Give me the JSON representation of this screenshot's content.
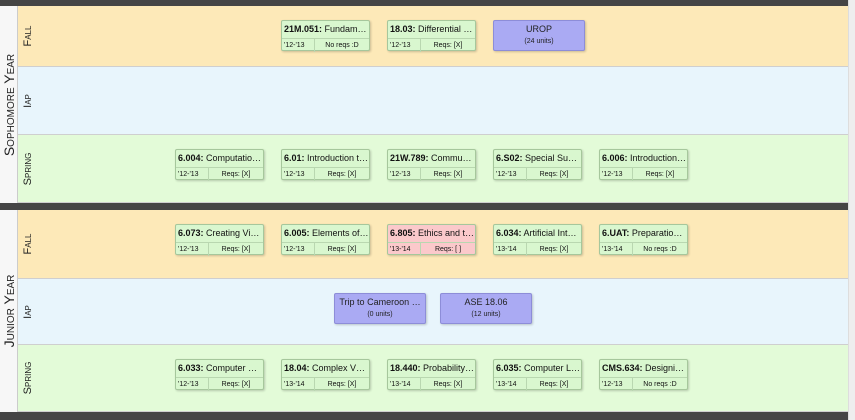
{
  "years": [
    {
      "label": "Sophomore Year",
      "terms": [
        {
          "label": "Fall",
          "color": "#fde9b8",
          "items": [
            {
              "code": "21M.051:",
              "name": " Fundam…",
              "year": "'12-'13",
              "reqs": "No reqs :D",
              "color": "#d9f7cf"
            },
            {
              "code": "18.03:",
              "name": " Differential …",
              "year": "'12-'13",
              "reqs": "Reqs: [X]",
              "color": "#d9f7cf"
            },
            {
              "title": "UROP",
              "units": "(24 units)",
              "color": "#aaaaf3"
            }
          ]
        },
        {
          "label": "Iap",
          "color": "#e8f5fc",
          "items": []
        },
        {
          "label": "Spring",
          "color": "#e3fbd8",
          "items": [
            {
              "code": "6.004:",
              "name": " Computatio…",
              "year": "'12-'13",
              "reqs": "Reqs: [X]",
              "color": "#d9f7cf"
            },
            {
              "code": "6.01:",
              "name": " Introduction t…",
              "year": "'12-'13",
              "reqs": "Reqs: [X]",
              "color": "#d9f7cf"
            },
            {
              "code": "21W.789:",
              "name": " Commu…",
              "year": "'12-'13",
              "reqs": "Reqs: [X]",
              "color": "#d9f7cf"
            },
            {
              "code": "6.S02:",
              "name": " Special Su…",
              "year": "'12-'13",
              "reqs": "Reqs: [X]",
              "color": "#d9f7cf"
            },
            {
              "code": "6.006:",
              "name": " Introduction…",
              "year": "'12-'13",
              "reqs": "Reqs: [X]",
              "color": "#d9f7cf"
            }
          ]
        }
      ]
    },
    {
      "label": "Junior Year",
      "terms": [
        {
          "label": "Fall",
          "color": "#fde9b8",
          "items": [
            {
              "code": "6.073:",
              "name": " Creating Vi…",
              "year": "'12-'13",
              "reqs": "Reqs: [X]",
              "color": "#d9f7cf"
            },
            {
              "code": "6.005:",
              "name": " Elements of…",
              "year": "'12-'13",
              "reqs": "Reqs: [X]",
              "color": "#d9f7cf"
            },
            {
              "code": "6.805:",
              "name": " Ethics and t…",
              "year": "'13-'14",
              "reqs": "Reqs: [ ]",
              "color": "#fbc9cb"
            },
            {
              "code": "6.034:",
              "name": " Artificial Int…",
              "year": "'13-'14",
              "reqs": "Reqs: [X]",
              "color": "#d9f7cf"
            },
            {
              "code": "6.UAT:",
              "name": " Preparatio…",
              "year": "'13-'14",
              "reqs": "No reqs :D",
              "color": "#d9f7cf"
            }
          ]
        },
        {
          "label": "Iap",
          "color": "#e8f5fc",
          "items": [
            {
              "title": "Trip to Cameroon …",
              "units": "(0 units)",
              "color": "#aaaaf3"
            },
            {
              "title": "ASE 18.06",
              "units": "(12 units)",
              "color": "#aaaaf3"
            }
          ]
        },
        {
          "label": "Spring",
          "color": "#e3fbd8",
          "items": [
            {
              "code": "6.033:",
              "name": " Computer …",
              "year": "'12-'13",
              "reqs": "Reqs: [X]",
              "color": "#d9f7cf"
            },
            {
              "code": "18.04:",
              "name": " Complex V…",
              "year": "'13-'14",
              "reqs": "Reqs: [X]",
              "color": "#d9f7cf"
            },
            {
              "code": "18.440:",
              "name": " Probability…",
              "year": "'13-'14",
              "reqs": "Reqs: [X]",
              "color": "#d9f7cf"
            },
            {
              "code": "6.035:",
              "name": " Computer L…",
              "year": "'13-'14",
              "reqs": "Reqs: [X]",
              "color": "#d9f7cf"
            },
            {
              "code": "CMS.634:",
              "name": " Designi…",
              "year": "'12-'13",
              "reqs": "No reqs :D",
              "color": "#d9f7cf"
            }
          ]
        }
      ]
    }
  ]
}
